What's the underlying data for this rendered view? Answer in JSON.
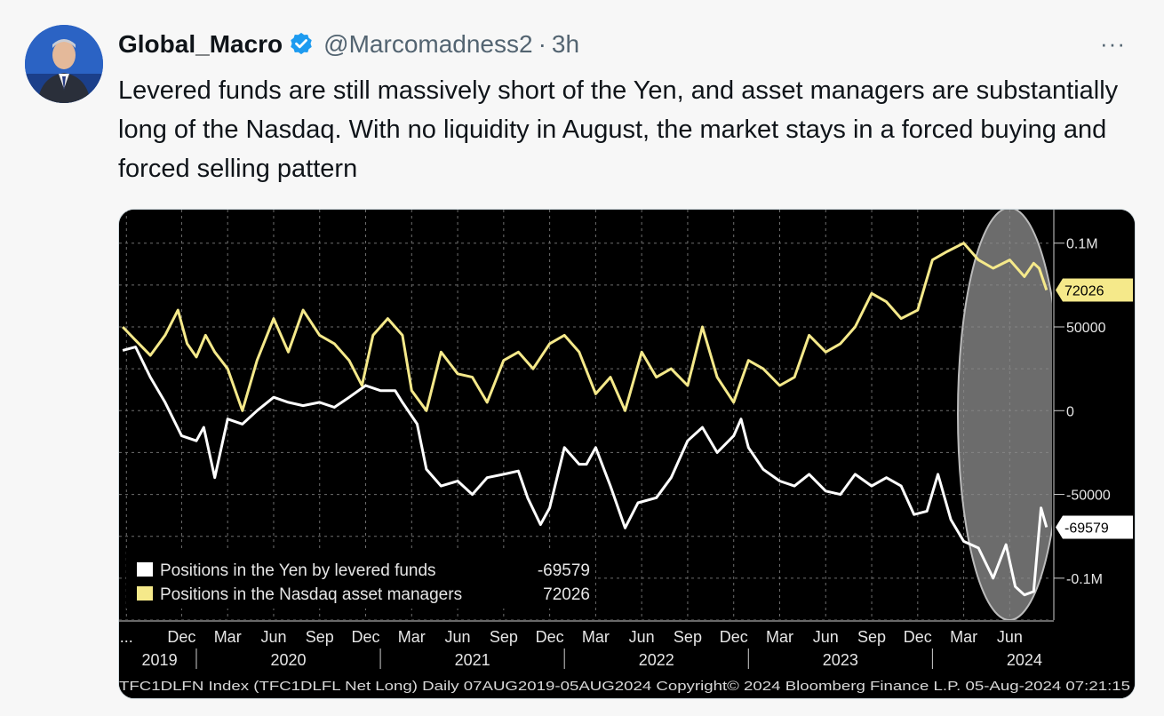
{
  "author": {
    "display_name": "Global_Macro",
    "handle": "@Marcomadness2",
    "separator": "·",
    "time_ago": "3h"
  },
  "more_label": "···",
  "tweet": {
    "text": "Levered funds are still massively short of the Yen, and asset managers are substantially long of the Nasdaq.  With no liquidity in August, the market stays in a forced buying and forced selling pattern"
  },
  "colors": {
    "yen": "#ffffff",
    "nasdaq": "#f5e98a",
    "chart_bg": "#000000",
    "highlight": "#8a8a8a"
  },
  "chart_data": {
    "type": "line",
    "title": "",
    "y_tick_labels": [
      "0.1M",
      "50000",
      "0",
      "-50000",
      "-0.1M"
    ],
    "y_ticks": [
      100000,
      50000,
      0,
      -50000,
      -100000
    ],
    "ylim": [
      -125000,
      120000
    ],
    "x_range": [
      2019.58,
      2024.65
    ],
    "month_labels": [
      "...",
      "Dec",
      "Mar",
      "Jun",
      "Sep",
      "Dec",
      "Mar",
      "Jun",
      "Sep",
      "Dec",
      "Mar",
      "Jun",
      "Sep",
      "Dec",
      "Mar",
      "Jun",
      "Sep",
      "Dec",
      "Mar",
      "Jun"
    ],
    "month_positions": [
      2019.62,
      2019.92,
      2020.17,
      2020.42,
      2020.67,
      2020.92,
      2021.17,
      2021.42,
      2021.67,
      2021.92,
      2022.17,
      2022.42,
      2022.67,
      2022.92,
      2023.17,
      2023.42,
      2023.67,
      2023.92,
      2024.17,
      2024.42
    ],
    "year_labels": [
      {
        "label": "2019",
        "x": 2019.8
      },
      {
        "label": "2020",
        "x": 2020.5
      },
      {
        "label": "2021",
        "x": 2021.5
      },
      {
        "label": "2022",
        "x": 2022.5
      },
      {
        "label": "2023",
        "x": 2023.5
      },
      {
        "label": "2024",
        "x": 2024.5
      }
    ],
    "year_separators": [
      2020.0,
      2021.0,
      2022.0,
      2023.0,
      2024.0
    ],
    "series": [
      {
        "name": "Positions in the Yen by levered funds",
        "last_value": "-69579",
        "x": [
          2019.6,
          2019.67,
          2019.75,
          2019.83,
          2019.92,
          2020.0,
          2020.04,
          2020.1,
          2020.17,
          2020.25,
          2020.33,
          2020.42,
          2020.5,
          2020.58,
          2020.67,
          2020.75,
          2020.83,
          2020.92,
          2021.0,
          2021.08,
          2021.12,
          2021.2,
          2021.25,
          2021.33,
          2021.42,
          2021.5,
          2021.58,
          2021.67,
          2021.75,
          2021.8,
          2021.87,
          2021.92,
          2022.0,
          2022.08,
          2022.12,
          2022.17,
          2022.25,
          2022.33,
          2022.4,
          2022.5,
          2022.58,
          2022.67,
          2022.75,
          2022.83,
          2022.92,
          2022.96,
          2023.0,
          2023.08,
          2023.17,
          2023.25,
          2023.33,
          2023.42,
          2023.5,
          2023.58,
          2023.67,
          2023.75,
          2023.83,
          2023.9,
          2023.97,
          2024.03,
          2024.1,
          2024.17,
          2024.25,
          2024.33,
          2024.4,
          2024.45,
          2024.5,
          2024.55,
          2024.59,
          2024.62
        ],
        "values": [
          36000,
          38000,
          20000,
          5000,
          -15000,
          -18000,
          -10000,
          -40000,
          -5000,
          -8000,
          0,
          8000,
          5000,
          3000,
          5000,
          2000,
          8000,
          15000,
          12000,
          12000,
          5000,
          -8000,
          -35000,
          -45000,
          -42000,
          -50000,
          -40000,
          -38000,
          -36000,
          -52000,
          -68000,
          -58000,
          -22000,
          -32000,
          -32000,
          -22000,
          -45000,
          -70000,
          -55000,
          -52000,
          -40000,
          -18000,
          -10000,
          -25000,
          -15000,
          -5000,
          -22000,
          -35000,
          -42000,
          -45000,
          -38000,
          -48000,
          -50000,
          -38000,
          -45000,
          -40000,
          -45000,
          -62000,
          -60000,
          -38000,
          -65000,
          -78000,
          -82000,
          -100000,
          -80000,
          -105000,
          -110000,
          -108000,
          -58000,
          -69579
        ]
      },
      {
        "name": "Positions in the Nasdaq asset managers",
        "last_value": "72026",
        "x": [
          2019.6,
          2019.67,
          2019.75,
          2019.83,
          2019.9,
          2019.95,
          2020.0,
          2020.05,
          2020.1,
          2020.17,
          2020.25,
          2020.33,
          2020.42,
          2020.5,
          2020.58,
          2020.67,
          2020.75,
          2020.83,
          2020.9,
          2020.96,
          2021.04,
          2021.12,
          2021.17,
          2021.25,
          2021.33,
          2021.42,
          2021.5,
          2021.58,
          2021.67,
          2021.75,
          2021.83,
          2021.92,
          2022.0,
          2022.08,
          2022.17,
          2022.25,
          2022.33,
          2022.42,
          2022.5,
          2022.58,
          2022.67,
          2022.75,
          2022.83,
          2022.92,
          2023.0,
          2023.08,
          2023.17,
          2023.25,
          2023.33,
          2023.42,
          2023.5,
          2023.58,
          2023.67,
          2023.75,
          2023.83,
          2023.92,
          2024.0,
          2024.08,
          2024.17,
          2024.25,
          2024.33,
          2024.42,
          2024.5,
          2024.55,
          2024.58,
          2024.62
        ],
        "values": [
          50000,
          42000,
          33000,
          45000,
          60000,
          40000,
          32000,
          45000,
          35000,
          25000,
          0,
          30000,
          55000,
          35000,
          60000,
          45000,
          40000,
          30000,
          15000,
          45000,
          55000,
          45000,
          12000,
          0,
          35000,
          22000,
          20000,
          5000,
          30000,
          35000,
          25000,
          40000,
          45000,
          35000,
          10000,
          20000,
          0,
          35000,
          20000,
          25000,
          15000,
          50000,
          20000,
          5000,
          30000,
          25000,
          15000,
          20000,
          45000,
          35000,
          40000,
          50000,
          70000,
          65000,
          55000,
          60000,
          90000,
          95000,
          100000,
          90000,
          85000,
          90000,
          80000,
          88000,
          85000,
          72026
        ]
      }
    ],
    "legend": [
      {
        "label": "Positions in the Yen by levered funds",
        "value": "-69579"
      },
      {
        "label": "Positions in the Nasdaq asset managers",
        "value": "72026"
      }
    ],
    "footer": "TFC1DLFN Index (TFC1DLFL Net Long)  Daily 07AUG2019-05AUG2024  Copyright© 2024 Bloomberg Finance L.P.  05-Aug-2024 07:21:15"
  }
}
